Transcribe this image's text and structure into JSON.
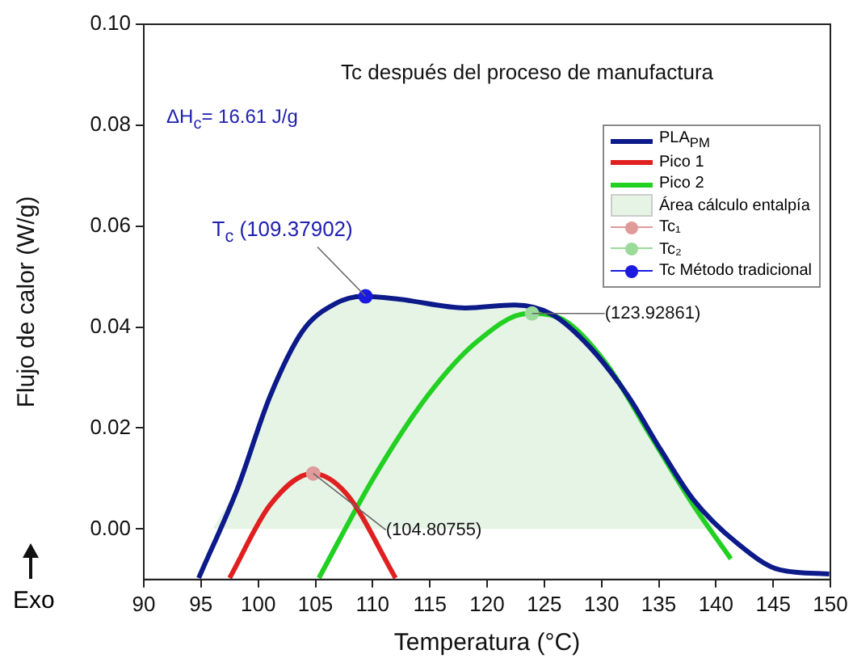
{
  "chart_data": {
    "type": "line",
    "title": "Tc después del proceso de manufactura",
    "xlabel": "Temperatura (°C)",
    "ylabel": "Flujo de calor (W/g)",
    "xlim": [
      90,
      150
    ],
    "xticks": [
      90,
      95,
      100,
      105,
      110,
      115,
      120,
      125,
      130,
      135,
      140,
      145,
      150
    ],
    "ylim": [
      -0.01,
      0.1
    ],
    "yticks": [
      {
        "value": 0,
        "label": "0.00"
      },
      {
        "value": 0.02,
        "label": "0.02"
      },
      {
        "value": 0.04,
        "label": "0.04"
      },
      {
        "value": 0.06,
        "label": "0.06"
      },
      {
        "value": 0.08,
        "label": "0.08"
      },
      {
        "value": 0.1,
        "label": "0.10"
      }
    ],
    "grid": false,
    "legend": "top right",
    "line_style": "solid",
    "series": [
      {
        "name": "PLA$_{PM}$",
        "type": "line",
        "color": "#0c1a8a",
        "x": [
          94.8,
          98.2,
          101.05,
          103.9,
          106.7,
          109.2,
          112.4,
          118.1,
          122.4,
          125.7,
          129.0,
          132.3,
          135.2,
          138.0,
          141.8,
          145.6,
          149.9
        ],
        "values": [
          -0.0097,
          0.0081,
          0.0264,
          0.0393,
          0.0446,
          0.0461,
          0.0455,
          0.0438,
          0.0444,
          0.0425,
          0.036,
          0.0264,
          0.0156,
          0.0059,
          -0.0027,
          -0.0081,
          -0.0089
        ]
      },
      {
        "name": "Pico 1",
        "type": "line",
        "color": "#e02020",
        "x": [
          97.5,
          101.05,
          104.75,
          107.7,
          112.0
        ],
        "values": [
          -0.0097,
          0.0048,
          0.011,
          0.007,
          -0.0097
        ]
      },
      {
        "name": "Pico 2",
        "type": "line",
        "color": "#22d022",
        "x": [
          105.3,
          110.1,
          114.8,
          119.1,
          123.6,
          126.7,
          130.4,
          134.2,
          138.0,
          141.3
        ],
        "values": [
          -0.0097,
          0.0102,
          0.0264,
          0.0371,
          0.0427,
          0.0414,
          0.0328,
          0.0188,
          0.0048,
          -0.0059
        ]
      },
      {
        "name": "Área cálculo entalpía",
        "type": "area",
        "color": "#e6f4e6",
        "x": [
          96.0,
          98.2,
          101.05,
          103.9,
          106.7,
          109.2,
          112.4,
          118.1,
          122.4,
          125.7,
          129.0,
          132.3,
          135.2,
          138.0,
          139.9
        ],
        "values": [
          0,
          0.0081,
          0.0264,
          0.0393,
          0.0446,
          0.0461,
          0.0455,
          0.0438,
          0.0444,
          0.0425,
          0.036,
          0.0264,
          0.0156,
          0.0059,
          0
        ]
      },
      {
        "name": "Tc₁",
        "type": "scatter",
        "marker": "circle",
        "color": "#e09a9a",
        "x": [
          104.80755
        ],
        "values": [
          0.011
        ]
      },
      {
        "name": "Tc₂",
        "type": "scatter",
        "marker": "circle",
        "color": "#9ada9a",
        "x": [
          123.92861
        ],
        "values": [
          0.0427
        ]
      },
      {
        "name": "Tc Método tradicional",
        "type": "scatter",
        "marker": "circle",
        "color": "#1a1ae0",
        "x": [
          109.37902
        ],
        "values": [
          0.0461
        ]
      }
    ],
    "annotations": [
      {
        "text": "T$_{c}$ (109.37902)",
        "x": 109.37902,
        "y": 0.0461
      },
      {
        "text": "(123.92861)",
        "x": 123.92861,
        "y": 0.0427
      },
      {
        "text": "(104.80755)",
        "x": 104.80755,
        "y": 0.011
      },
      "ΔH$_{c}$= 16.61 J/g",
      "Exo"
    ]
  }
}
